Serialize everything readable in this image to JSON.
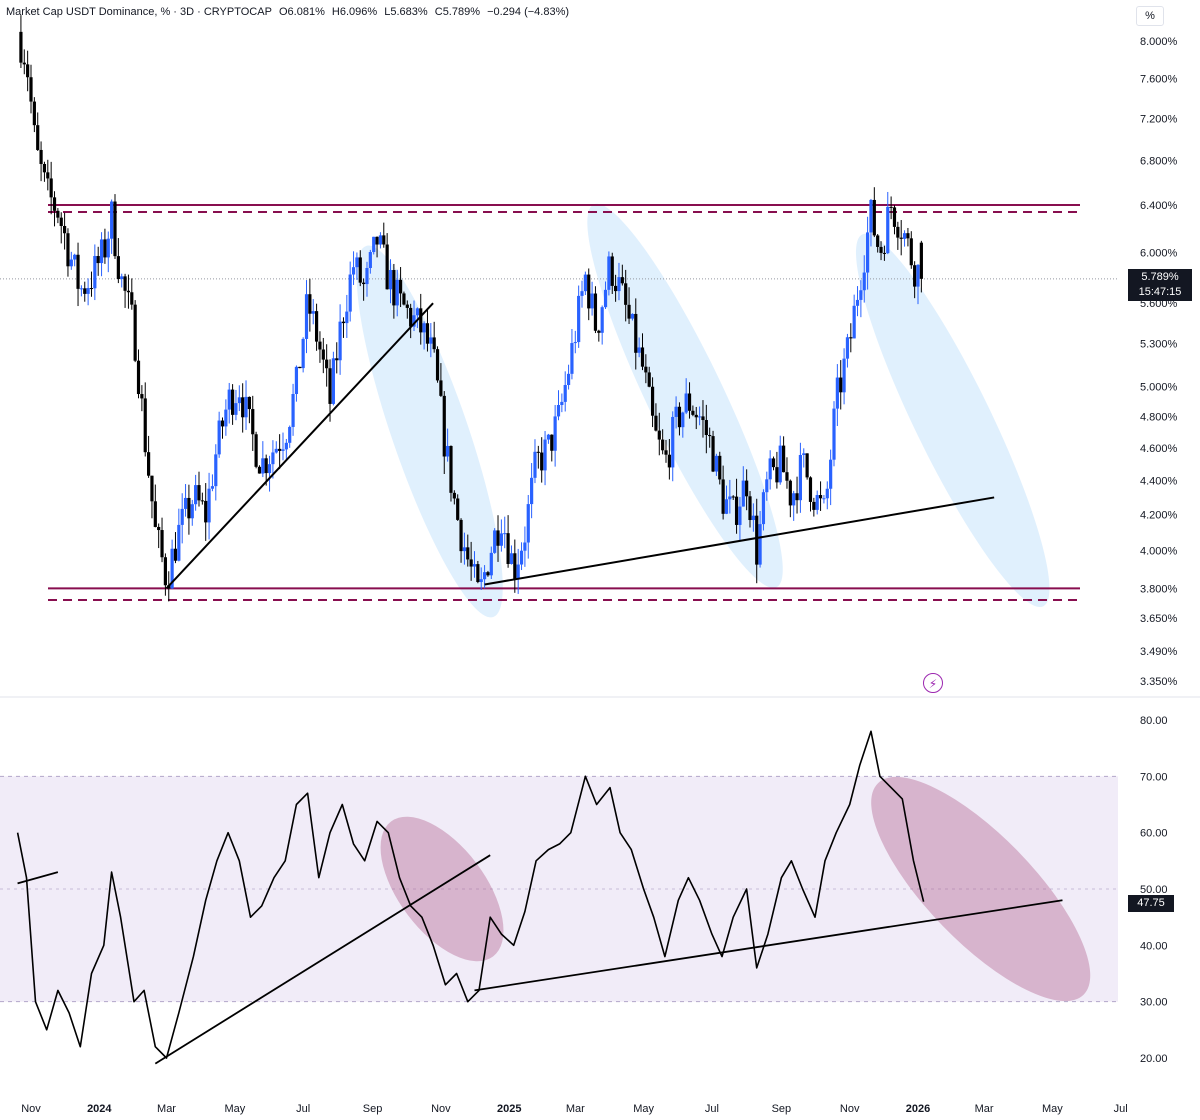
{
  "header": {
    "symbol": "Market Cap USDT Dominance, % · 3D · CRYPTOCAP",
    "open": "O6.081%",
    "high": "H6.096%",
    "low": "L5.683%",
    "close": "C5.789%",
    "change": "−0.294 (−4.83%)"
  },
  "unit_button": "%",
  "price_label": {
    "value": "5.789%",
    "countdown": "15:47:15"
  },
  "oscillator_label": "47.75",
  "icons": {
    "flash": "lightning-icon"
  },
  "colors": {
    "up_candle": "#2962ff",
    "down_candle": "#000000",
    "resistance_band": "#880e4f",
    "trend_line": "#000000",
    "blue_ellipse": "#bbdefb",
    "pink_ellipse": "#ad5a85",
    "osc_band": "#ede7f6"
  },
  "chart_data": [
    {
      "type": "candlestick",
      "title": "Market Cap USDT Dominance, % · 3D · CRYPTOCAP",
      "x_tick_labels": [
        "Nov",
        "2024",
        "Mar",
        "May",
        "Jul",
        "Sep",
        "Nov",
        "2025",
        "Mar",
        "May",
        "Jul",
        "Sep",
        "Nov",
        "2026",
        "Mar",
        "May",
        "Jul"
      ],
      "y_tick_labels": [
        "8.000%",
        "7.600%",
        "7.200%",
        "6.800%",
        "6.400%",
        "6.000%",
        "5.600%",
        "5.300%",
        "5.000%",
        "4.800%",
        "4.600%",
        "4.400%",
        "4.200%",
        "4.000%",
        "3.800%",
        "3.650%",
        "3.490%",
        "3.350%"
      ],
      "y_scale": "log",
      "ylim": [
        3.3,
        8.2
      ],
      "close_path": [
        [
          "2023-10-20",
          8.1
        ],
        [
          "2023-10-28",
          7.8
        ],
        [
          "2023-11-05",
          6.9
        ],
        [
          "2023-11-15",
          6.5
        ],
        [
          "2023-11-25",
          6.35
        ],
        [
          "2023-12-05",
          6.0
        ],
        [
          "2023-12-15",
          5.7
        ],
        [
          "2023-12-25",
          5.8
        ],
        [
          "2024-01-05",
          6.0
        ],
        [
          "2024-01-12",
          6.3
        ],
        [
          "2024-01-20",
          5.8
        ],
        [
          "2024-02-01",
          5.4
        ],
        [
          "2024-02-10",
          4.7
        ],
        [
          "2024-02-20",
          4.1
        ],
        [
          "2024-03-01",
          3.85
        ],
        [
          "2024-03-12",
          4.1
        ],
        [
          "2024-03-25",
          4.3
        ],
        [
          "2024-04-05",
          4.2
        ],
        [
          "2024-04-15",
          4.6
        ],
        [
          "2024-04-25",
          4.9
        ],
        [
          "2024-05-05",
          5.0
        ],
        [
          "2024-05-15",
          4.7
        ],
        [
          "2024-05-25",
          4.5
        ],
        [
          "2024-06-05",
          4.6
        ],
        [
          "2024-06-15",
          4.7
        ],
        [
          "2024-06-25",
          5.0
        ],
        [
          "2024-07-05",
          5.6
        ],
        [
          "2024-07-15",
          5.3
        ],
        [
          "2024-07-25",
          4.9
        ],
        [
          "2024-08-05",
          5.5
        ],
        [
          "2024-08-15",
          5.9
        ],
        [
          "2024-08-25",
          5.7
        ],
        [
          "2024-09-05",
          6.1
        ],
        [
          "2024-09-15",
          5.8
        ],
        [
          "2024-09-25",
          5.6
        ],
        [
          "2024-10-05",
          5.5
        ],
        [
          "2024-10-15",
          5.4
        ],
        [
          "2024-10-25",
          5.2
        ],
        [
          "2024-11-05",
          4.6
        ],
        [
          "2024-11-15",
          4.2
        ],
        [
          "2024-11-25",
          3.95
        ],
        [
          "2024-12-05",
          3.75
        ],
        [
          "2024-12-15",
          4.0
        ],
        [
          "2024-12-25",
          4.2
        ],
        [
          "2025-01-05",
          3.9
        ],
        [
          "2025-01-15",
          4.1
        ],
        [
          "2025-01-25",
          4.5
        ],
        [
          "2025-02-05",
          4.6
        ],
        [
          "2025-02-15",
          4.8
        ],
        [
          "2025-02-25",
          5.2
        ],
        [
          "2025-03-10",
          5.8
        ],
        [
          "2025-03-20",
          5.4
        ],
        [
          "2025-04-01",
          5.9
        ],
        [
          "2025-04-10",
          5.7
        ],
        [
          "2025-04-20",
          5.4
        ],
        [
          "2025-05-01",
          5.1
        ],
        [
          "2025-05-10",
          4.7
        ],
        [
          "2025-05-20",
          4.5
        ],
        [
          "2025-06-01",
          4.8
        ],
        [
          "2025-06-10",
          4.9
        ],
        [
          "2025-06-20",
          4.8
        ],
        [
          "2025-07-01",
          4.6
        ],
        [
          "2025-07-10",
          4.3
        ],
        [
          "2025-07-20",
          4.2
        ],
        [
          "2025-08-01",
          4.4
        ],
        [
          "2025-08-10",
          4.0
        ],
        [
          "2025-08-20",
          4.4
        ],
        [
          "2025-09-01",
          4.5
        ],
        [
          "2025-09-10",
          4.3
        ],
        [
          "2025-09-20",
          4.5
        ],
        [
          "2025-10-01",
          4.3
        ],
        [
          "2025-10-10",
          4.2
        ],
        [
          "2025-10-20",
          4.9
        ],
        [
          "2025-11-01",
          5.3
        ],
        [
          "2025-11-10",
          5.8
        ],
        [
          "2025-11-20",
          6.3
        ],
        [
          "2025-11-28",
          6.0
        ],
        [
          "2025-12-08",
          6.4
        ],
        [
          "2025-12-18",
          6.2
        ],
        [
          "2025-12-28",
          5.9
        ],
        [
          "2026-01-06",
          5.789
        ]
      ],
      "last_candle": {
        "open": 6.081,
        "high": 6.096,
        "low": 5.683,
        "close": 5.789
      },
      "horizontal_levels": [
        6.4,
        6.34,
        3.8,
        3.74
      ],
      "trend_lines": [
        [
          [
            "2024-03-01",
            3.8
          ],
          [
            "2024-10-25",
            5.6
          ]
        ],
        [
          [
            "2024-12-10",
            3.82
          ],
          [
            "2026-03-10",
            4.3
          ]
        ]
      ]
    },
    {
      "type": "line",
      "title": "",
      "y_tick_labels": [
        "80.00",
        "70.00",
        "60.00",
        "50.00",
        "40.00",
        "30.00",
        "20.00"
      ],
      "ylim": [
        17,
        83
      ],
      "band": [
        30,
        70
      ],
      "midline": 50,
      "last_value": 47.75,
      "x": [
        "2023-10-20",
        "2023-10-28",
        "2023-11-05",
        "2023-11-15",
        "2023-11-25",
        "2023-12-05",
        "2023-12-15",
        "2023-12-25",
        "2024-01-05",
        "2024-01-12",
        "2024-01-20",
        "2024-02-01",
        "2024-02-10",
        "2024-02-20",
        "2024-03-01",
        "2024-03-12",
        "2024-03-25",
        "2024-04-05",
        "2024-04-15",
        "2024-04-25",
        "2024-05-05",
        "2024-05-15",
        "2024-05-25",
        "2024-06-05",
        "2024-06-15",
        "2024-06-25",
        "2024-07-05",
        "2024-07-15",
        "2024-07-25",
        "2024-08-05",
        "2024-08-15",
        "2024-08-25",
        "2024-09-05",
        "2024-09-15",
        "2024-09-25",
        "2024-10-05",
        "2024-10-15",
        "2024-10-25",
        "2024-11-05",
        "2024-11-15",
        "2024-11-25",
        "2024-12-05",
        "2024-12-15",
        "2024-12-25",
        "2025-01-05",
        "2025-01-15",
        "2025-01-25",
        "2025-02-05",
        "2025-02-15",
        "2025-02-25",
        "2025-03-10",
        "2025-03-20",
        "2025-04-01",
        "2025-04-10",
        "2025-04-20",
        "2025-05-01",
        "2025-05-10",
        "2025-05-20",
        "2025-06-01",
        "2025-06-10",
        "2025-06-20",
        "2025-07-01",
        "2025-07-10",
        "2025-07-20",
        "2025-08-01",
        "2025-08-10",
        "2025-08-20",
        "2025-09-01",
        "2025-09-10",
        "2025-09-20",
        "2025-10-01",
        "2025-10-10",
        "2025-10-20",
        "2025-11-01",
        "2025-11-10",
        "2025-11-20",
        "2025-11-28",
        "2025-12-08",
        "2025-12-18",
        "2025-12-28",
        "2026-01-06"
      ],
      "values": [
        60,
        52,
        30,
        25,
        32,
        28,
        22,
        35,
        40,
        53,
        45,
        30,
        32,
        22,
        20,
        28,
        38,
        48,
        55,
        60,
        55,
        45,
        47,
        52,
        55,
        65,
        67,
        52,
        60,
        65,
        58,
        55,
        62,
        60,
        52,
        47,
        45,
        40,
        33,
        35,
        30,
        32,
        45,
        42,
        40,
        46,
        55,
        57,
        58,
        60,
        70,
        65,
        68,
        60,
        57,
        50,
        45,
        38,
        48,
        52,
        48,
        42,
        38,
        45,
        50,
        36,
        42,
        52,
        55,
        50,
        45,
        55,
        60,
        65,
        72,
        78,
        70,
        68,
        66,
        55,
        47.75
      ],
      "trend_lines": [
        [
          [
            "2023-10-20",
            51
          ],
          [
            "2023-11-25",
            53
          ]
        ],
        [
          [
            "2024-02-20",
            19
          ],
          [
            "2024-12-15",
            56
          ]
        ],
        [
          [
            "2024-12-01",
            32
          ],
          [
            "2026-05-10",
            48
          ]
        ]
      ]
    }
  ]
}
